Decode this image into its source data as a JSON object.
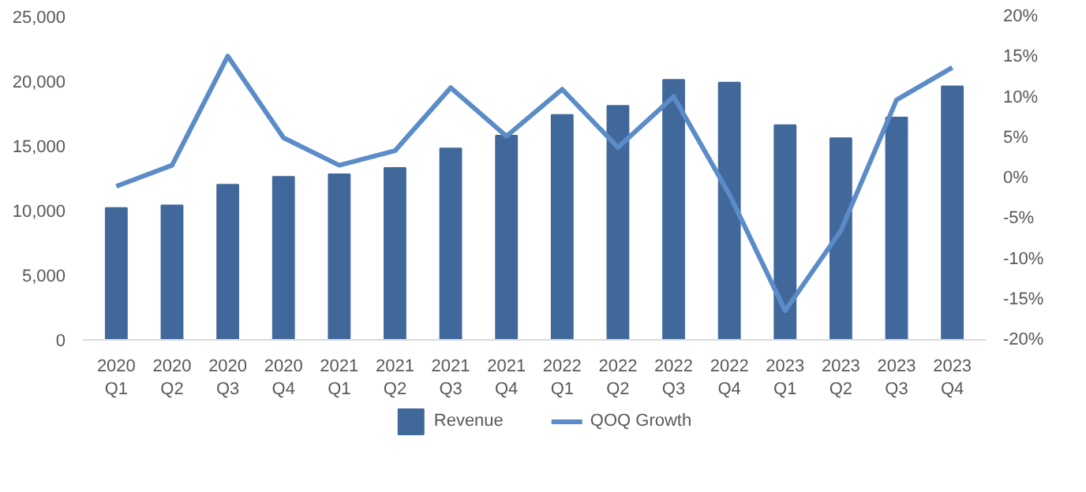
{
  "chart_data": {
    "type": "bar",
    "categories": [
      "2020\nQ1",
      "2020\nQ2",
      "2020\nQ3",
      "2020\nQ4",
      "2021\nQ1",
      "2021\nQ2",
      "2021\nQ3",
      "2021\nQ4",
      "2022\nQ1",
      "2022\nQ2",
      "2022\nQ3",
      "2022\nQ4",
      "2023\nQ1",
      "2023\nQ2",
      "2023\nQ3",
      "2023\nQ4"
    ],
    "series": [
      {
        "name": "Revenue",
        "color": "#41689b",
        "values": [
          10200,
          10400,
          12000,
          12600,
          12800,
          13300,
          14800,
          15800,
          17400,
          18100,
          20100,
          19900,
          16600,
          15600,
          17200,
          19600
        ]
      },
      {
        "name": "QOQ Growth",
        "type": "line",
        "axis": "y2",
        "color": "#5b8cc8",
        "values": [
          -1,
          1.6,
          15.1,
          5,
          1.6,
          3.4,
          11.2,
          5.2,
          11,
          3.8,
          10.1,
          -2,
          -16.4,
          -6.5,
          9.7,
          13.7
        ]
      }
    ],
    "ylim": [
      0,
      25000
    ],
    "yticks": [
      {
        "value": 0,
        "label": "0"
      },
      {
        "value": 5000,
        "label": "5,000"
      },
      {
        "value": 10000,
        "label": "10,000"
      },
      {
        "value": 15000,
        "label": "15,000"
      },
      {
        "value": 20000,
        "label": "20,000"
      },
      {
        "value": 25000,
        "label": "25,000"
      }
    ],
    "y2lim": [
      -20,
      20
    ],
    "y2ticks": [
      {
        "value": -20,
        "label": "-20%"
      },
      {
        "value": -15,
        "label": "-15%"
      },
      {
        "value": -10,
        "label": "-10%"
      },
      {
        "value": -5,
        "label": "-5%"
      },
      {
        "value": 0,
        "label": "0%"
      },
      {
        "value": 5,
        "label": "5%"
      },
      {
        "value": 10,
        "label": "10%"
      },
      {
        "value": 15,
        "label": "15%"
      },
      {
        "value": 20,
        "label": "20%"
      }
    ],
    "grid": false,
    "legend": "bottom",
    "line_style": "solid",
    "marker": "none"
  }
}
